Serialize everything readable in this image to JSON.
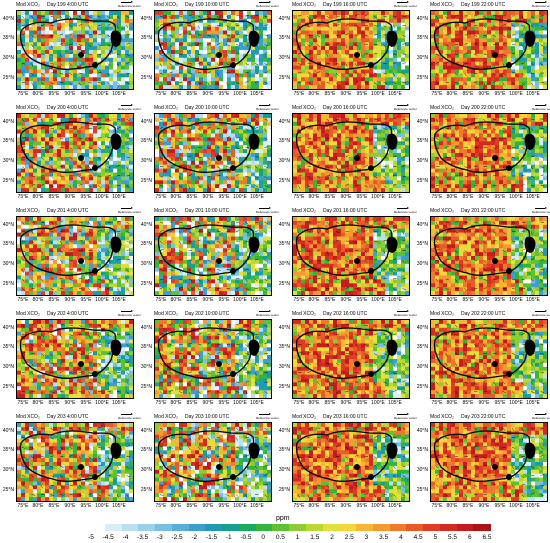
{
  "panel_label": "Mod XCO₂",
  "reference_vector": {
    "label": "Reference vector"
  },
  "rows": [
    [
      "Day 199 4:00 UTC",
      "Day 199 10:00 UTC",
      "Day 199 16:00 UTC",
      "Day 199 22:00 UTC"
    ],
    [
      "Day 200 4:00 UTC",
      "Day 200 10:00 UTC",
      "Day 200 16:00 UTC",
      "Day 200 22:00 UTC"
    ],
    [
      "Day 201 4:00 UTC",
      "Day 201 10:00 UTC",
      "Day 201 16:00 UTC",
      "Day 201 22:00 UTC"
    ],
    [
      "Day 202 4:00 UTC",
      "Day 202 10:00 UTC",
      "Day 202 16:00 UTC",
      "Day 202 22:00 UTC"
    ],
    [
      "Day 203 4:00 UTC",
      "Day 203 10:00 UTC",
      "Day 203 16:00 UTC",
      "Day 203 22:00 UTC"
    ]
  ],
  "panel_warmth": [
    [
      0.35,
      0.3,
      0.85,
      0.8
    ],
    [
      0.55,
      0.45,
      0.85,
      0.9
    ],
    [
      0.5,
      0.45,
      0.85,
      0.9
    ],
    [
      0.6,
      0.55,
      0.9,
      0.9
    ],
    [
      0.6,
      0.5,
      0.9,
      0.9
    ]
  ],
  "lat_labels": [
    "40°N",
    "35°N",
    "30°N",
    "25°N"
  ],
  "lon_labels": [
    "75°E",
    "80°E",
    "85°E",
    "90°E",
    "95°E",
    "100°E",
    "105°E"
  ],
  "colorbar": {
    "label": "ppm",
    "ticks": [
      "-5",
      "-4.5",
      "-4",
      "-3.5",
      "-3",
      "-2.5",
      "-2",
      "-1.5",
      "-1",
      "-0.5",
      "0",
      "0.5",
      "1",
      "1.5",
      "2",
      "2.5",
      "3",
      "3.5",
      "4",
      "4.5",
      "5",
      "5.5",
      "6",
      "6.5"
    ],
    "colors": [
      "#ffffff",
      "#d8eef8",
      "#b8e0f2",
      "#98d0ea",
      "#78c0e2",
      "#58aed8",
      "#3c9fd0",
      "#1f9bb2",
      "#14a08c",
      "#1aaa5e",
      "#33b43c",
      "#60c033",
      "#8fcc33",
      "#bcd733",
      "#e2e03a",
      "#f5d53a",
      "#f7b734",
      "#f59a30",
      "#f07a2c",
      "#e85a28",
      "#e03c24",
      "#d42a22",
      "#c21c1f",
      "#a8141a"
    ]
  }
}
